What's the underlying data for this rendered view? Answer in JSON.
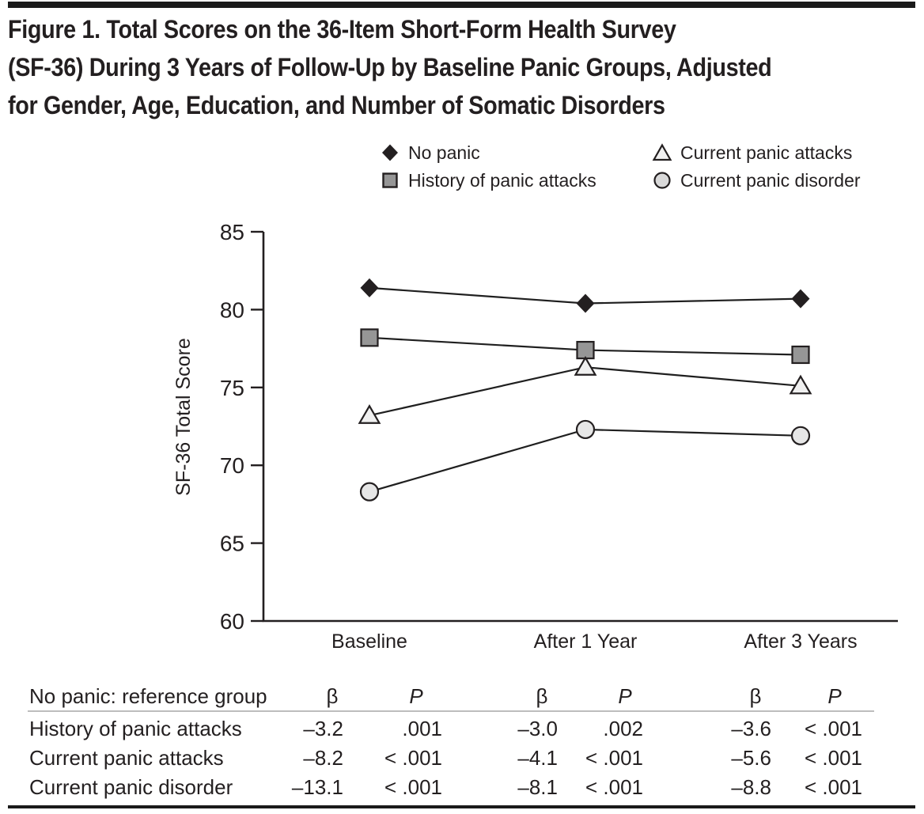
{
  "figure": {
    "title_lines": [
      "Figure 1. Total Scores on the 36-Item Short-Form Health Survey",
      "(SF-36) During 3 Years of Follow-Up by Baseline Panic Groups, Adjusted",
      "for Gender, Age, Education, and Number of Somatic Disorders"
    ]
  },
  "legend": {
    "items": [
      {
        "label": "No panic",
        "marker": "diamond-black"
      },
      {
        "label": "History of panic attacks",
        "marker": "square-gray"
      },
      {
        "label": "Current panic attacks",
        "marker": "triangle-white"
      },
      {
        "label": "Current panic disorder",
        "marker": "circle-lightgray"
      }
    ]
  },
  "chart_data": {
    "type": "line",
    "x": [
      "Baseline",
      "After 1 Year",
      "After 3 Years"
    ],
    "series": [
      {
        "name": "No panic",
        "marker": "diamond-black",
        "values": [
          81.4,
          80.4,
          80.7
        ]
      },
      {
        "name": "History of panic attacks",
        "marker": "square-gray",
        "values": [
          78.2,
          77.4,
          77.1
        ]
      },
      {
        "name": "Current panic attacks",
        "marker": "triangle-white",
        "values": [
          73.2,
          76.3,
          75.1
        ]
      },
      {
        "name": "Current panic disorder",
        "marker": "circle-lightgray",
        "values": [
          68.3,
          72.3,
          71.9
        ]
      }
    ],
    "title": "",
    "xlabel": "",
    "ylabel": "SF-36 Total Score",
    "ylim": [
      60,
      85
    ],
    "yticks": [
      60,
      65,
      70,
      75,
      80,
      85
    ],
    "grid": false,
    "legend_position": "top"
  },
  "stats_table": {
    "header_label": "No panic: reference group",
    "column_headers": [
      "β",
      "P",
      "β",
      "P",
      "β",
      "P"
    ],
    "rows": [
      {
        "label": "History of panic attacks",
        "values": [
          "–3.2",
          ".001",
          "–3.0",
          ".002",
          "–3.6",
          "< .001"
        ]
      },
      {
        "label": "Current panic attacks",
        "values": [
          "–8.2",
          "< .001",
          "–4.1",
          "< .001",
          "–5.6",
          "< .001"
        ]
      },
      {
        "label": "Current panic disorder",
        "values": [
          "–13.1",
          "< .001",
          "–8.1",
          "< .001",
          "–8.8",
          "< .001"
        ]
      }
    ]
  },
  "colors": {
    "ink": "#231f20",
    "line": "#1f1f1f",
    "marker_diamond": "#231f20",
    "marker_square": "#969696",
    "marker_triangle": "#f0f0f0",
    "marker_circle": "#e6e6e6",
    "header_rule": "#bdbdbd",
    "bar": "#1a1a1a"
  }
}
